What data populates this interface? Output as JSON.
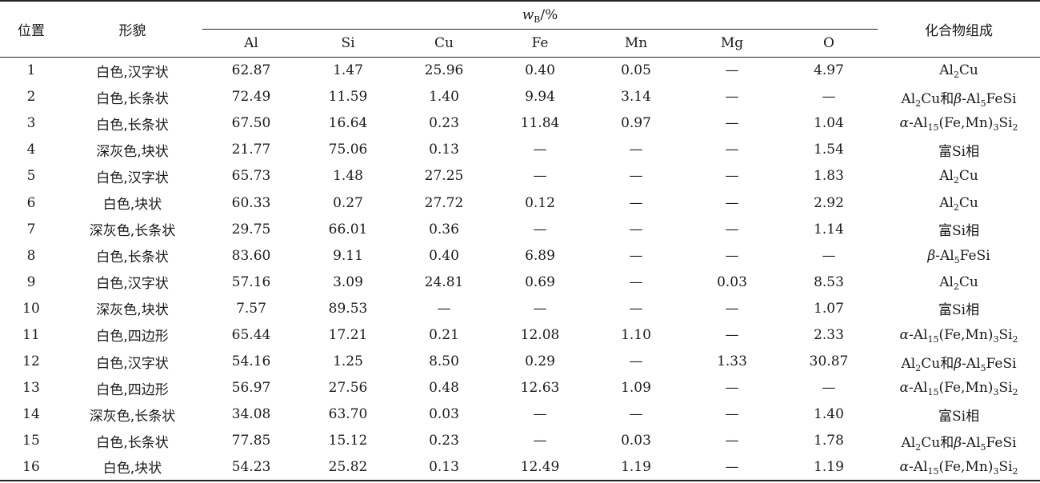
{
  "header": {
    "position": "位置",
    "morphology": "形貌",
    "wb_symbol": "w",
    "wb_sub": "B",
    "wb_unit": "/%",
    "elements": [
      "Al",
      "Si",
      "Cu",
      "Fe",
      "Mn",
      "Mg",
      "O"
    ],
    "composition": "化合物组成"
  },
  "rows": [
    {
      "pos": "1",
      "morph": "白色,汉字状",
      "al": "62.87",
      "si": "1.47",
      "cu": "25.96",
      "fe": "0.40",
      "mn": "0.05",
      "mg": "—",
      "o": "4.97",
      "comp": "Al2Cu"
    },
    {
      "pos": "2",
      "morph": "白色,长条状",
      "al": "72.49",
      "si": "11.59",
      "cu": "1.40",
      "fe": "9.94",
      "mn": "3.14",
      "mg": "—",
      "o": "—",
      "comp": "Al2Cu和β-Al5FeSi"
    },
    {
      "pos": "3",
      "morph": "白色,长条状",
      "al": "67.50",
      "si": "16.64",
      "cu": "0.23",
      "fe": "11.84",
      "mn": "0.97",
      "mg": "—",
      "o": "1.04",
      "comp": "α-Al15(Fe,Mn)3Si2"
    },
    {
      "pos": "4",
      "morph": "深灰色,块状",
      "al": "21.77",
      "si": "75.06",
      "cu": "0.13",
      "fe": "—",
      "mn": "—",
      "mg": "—",
      "o": "1.54",
      "comp": "富Si相"
    },
    {
      "pos": "5",
      "morph": "白色,汉字状",
      "al": "65.73",
      "si": "1.48",
      "cu": "27.25",
      "fe": "—",
      "mn": "—",
      "mg": "—",
      "o": "1.83",
      "comp": "Al2Cu"
    },
    {
      "pos": "6",
      "morph": "白色,块状",
      "al": "60.33",
      "si": "0.27",
      "cu": "27.72",
      "fe": "0.12",
      "mn": "—",
      "mg": "—",
      "o": "2.92",
      "comp": "Al2Cu"
    },
    {
      "pos": "7",
      "morph": "深灰色,长条状",
      "al": "29.75",
      "si": "66.01",
      "cu": "0.36",
      "fe": "—",
      "mn": "—",
      "mg": "—",
      "o": "1.14",
      "comp": "富Si相"
    },
    {
      "pos": "8",
      "morph": "白色,长条状",
      "al": "83.60",
      "si": "9.11",
      "cu": "0.40",
      "fe": "6.89",
      "mn": "—",
      "mg": "—",
      "o": "—",
      "comp": "β-Al5FeSi"
    },
    {
      "pos": "9",
      "morph": "白色,汉字状",
      "al": "57.16",
      "si": "3.09",
      "cu": "24.81",
      "fe": "0.69",
      "mn": "—",
      "mg": "0.03",
      "o": "8.53",
      "comp": "Al2Cu"
    },
    {
      "pos": "10",
      "morph": "深灰色,块状",
      "al": "7.57",
      "si": "89.53",
      "cu": "—",
      "fe": "—",
      "mn": "—",
      "mg": "—",
      "o": "1.07",
      "comp": "富Si相"
    },
    {
      "pos": "11",
      "morph": "白色,四边形",
      "al": "65.44",
      "si": "17.21",
      "cu": "0.21",
      "fe": "12.08",
      "mn": "1.10",
      "mg": "—",
      "o": "2.33",
      "comp": "α-Al15(Fe,Mn)3Si2"
    },
    {
      "pos": "12",
      "morph": "白色,汉字状",
      "al": "54.16",
      "si": "1.25",
      "cu": "8.50",
      "fe": "0.29",
      "mn": "—",
      "mg": "1.33",
      "o": "30.87",
      "comp": "Al2Cu和β-Al5FeSi"
    },
    {
      "pos": "13",
      "morph": "白色,四边形",
      "al": "56.97",
      "si": "27.56",
      "cu": "0.48",
      "fe": "12.63",
      "mn": "1.09",
      "mg": "—",
      "o": "—",
      "comp": "α-Al15(Fe,Mn)3Si2"
    },
    {
      "pos": "14",
      "morph": "深灰色,长条状",
      "al": "34.08",
      "si": "63.70",
      "cu": "0.03",
      "fe": "—",
      "mn": "—",
      "mg": "—",
      "o": "1.40",
      "comp": "富Si相"
    },
    {
      "pos": "15",
      "morph": "白色,长条状",
      "al": "77.85",
      "si": "15.12",
      "cu": "0.23",
      "fe": "—",
      "mn": "0.03",
      "mg": "—",
      "o": "1.78",
      "comp": "Al2Cu和β-Al5FeSi"
    },
    {
      "pos": "16",
      "morph": "白色,块状",
      "al": "54.23",
      "si": "25.82",
      "cu": "0.13",
      "fe": "12.49",
      "mn": "1.19",
      "mg": "—",
      "o": "1.19",
      "comp": "α-Al15(Fe,Mn)3Si2"
    }
  ]
}
